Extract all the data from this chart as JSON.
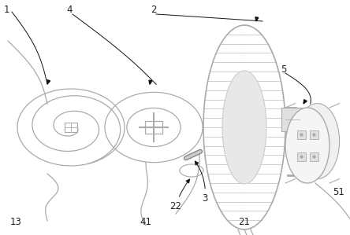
{
  "bg_color": "#ffffff",
  "line_color": "#aaaaaa",
  "dark_line_color": "#444444",
  "arrow_color": "#111111",
  "label_color": "#222222",
  "label_fs": 8.5,
  "figsize": [
    4.44,
    2.99
  ],
  "dpi": 100
}
